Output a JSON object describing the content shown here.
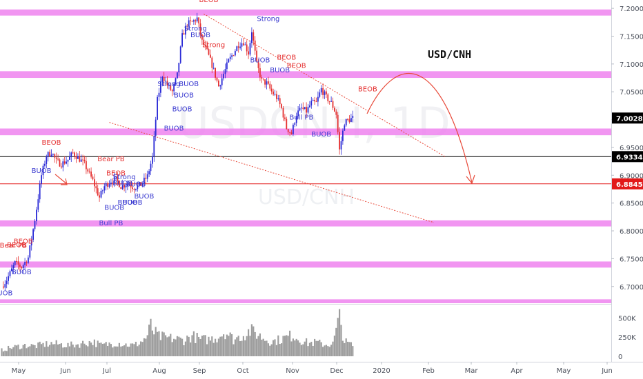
{
  "chart_data": {
    "type": "candlestick",
    "symbol": "USD/CNH",
    "title": "USD/CNH",
    "watermark_large": "USDCNH, 1D",
    "watermark_small": "USD/CNH",
    "price_axis": {
      "range": [
        6.67,
        7.215
      ],
      "ticks": [
        7.2,
        7.15,
        7.1,
        7.05,
        7.0,
        6.95,
        6.9,
        6.85,
        6.8,
        6.75,
        6.7
      ],
      "tick_labels": [
        "7.20000",
        "7.15000",
        "7.10000",
        "7.05000",
        "7.00000",
        "6.95000",
        "6.90000",
        "6.85000",
        "6.80000",
        "6.75000",
        "6.70000"
      ]
    },
    "time_axis": {
      "labels": [
        "May",
        "Jun",
        "Jul",
        "Aug",
        "Sep",
        "Oct",
        "Nov",
        "Dec",
        "2020",
        "Feb",
        "Mar",
        "Apr",
        "May",
        "Jun"
      ]
    },
    "volume_axis": {
      "range": [
        0,
        620000
      ],
      "ticks": [
        0,
        250000,
        500000
      ],
      "tick_labels": [
        "0",
        "250K",
        "500K"
      ]
    },
    "price_markers": [
      {
        "value": 7.0028,
        "label": "7.00280",
        "color": "#000000"
      },
      {
        "value": 6.93348,
        "label": "6.93348",
        "color": "#000000"
      },
      {
        "value": 6.88454,
        "label": "6.88454",
        "color": "#e21a1a"
      }
    ],
    "horizontal_lines": [
      {
        "value": 6.93348,
        "color": "#000000"
      },
      {
        "value": 6.88454,
        "color": "#e21a1a"
      }
    ],
    "zones": [
      {
        "low": 7.187,
        "high": 7.198
      },
      {
        "low": 7.075,
        "high": 7.087
      },
      {
        "low": 6.972,
        "high": 6.984
      },
      {
        "low": 6.808,
        "high": 6.819
      },
      {
        "low": 6.734,
        "high": 6.745
      },
      {
        "low": 6.67,
        "high": 6.677
      }
    ],
    "zone_color": "#ee82ee",
    "channel_lines": [
      {
        "from": {
          "day": 122,
          "price": 7.19
        },
        "to": {
          "day": 268,
          "price": 6.933
        }
      },
      {
        "from": {
          "day": 65,
          "price": 6.995
        },
        "to": {
          "day": 261,
          "price": 6.815
        }
      }
    ],
    "candle_colors": {
      "up": "#2a2ad6",
      "down": "#e53030"
    },
    "ohlc_anchors": [
      [
        0,
        6.7
      ],
      [
        3,
        6.712
      ],
      [
        8,
        6.742
      ],
      [
        12,
        6.735
      ],
      [
        16,
        6.752
      ],
      [
        20,
        6.82
      ],
      [
        24,
        6.9
      ],
      [
        27,
        6.935
      ],
      [
        30,
        6.942
      ],
      [
        33,
        6.925
      ],
      [
        36,
        6.92
      ],
      [
        40,
        6.928
      ],
      [
        43,
        6.94
      ],
      [
        46,
        6.932
      ],
      [
        50,
        6.92
      ],
      [
        55,
        6.89
      ],
      [
        59,
        6.86
      ],
      [
        62,
        6.88
      ],
      [
        66,
        6.89
      ],
      [
        69,
        6.893
      ],
      [
        72,
        6.88
      ],
      [
        76,
        6.885
      ],
      [
        80,
        6.878
      ],
      [
        84,
        6.883
      ],
      [
        88,
        6.898
      ],
      [
        91,
        6.932
      ],
      [
        94,
        7.035
      ],
      [
        97,
        7.08
      ],
      [
        100,
        7.062
      ],
      [
        103,
        7.05
      ],
      [
        106,
        7.08
      ],
      [
        109,
        7.15
      ],
      [
        112,
        7.172
      ],
      [
        115,
        7.175
      ],
      [
        118,
        7.182
      ],
      [
        121,
        7.14
      ],
      [
        124,
        7.122
      ],
      [
        127,
        7.098
      ],
      [
        131,
        7.06
      ],
      [
        134,
        7.082
      ],
      [
        137,
        7.105
      ],
      [
        140,
        7.12
      ],
      [
        143,
        7.135
      ],
      [
        146,
        7.14
      ],
      [
        149,
        7.12
      ],
      [
        151,
        7.16
      ],
      [
        154,
        7.1
      ],
      [
        157,
        7.07
      ],
      [
        160,
        7.065
      ],
      [
        163,
        7.05
      ],
      [
        166,
        7.04
      ],
      [
        169,
        7.02
      ],
      [
        172,
        6.985
      ],
      [
        175,
        6.975
      ],
      [
        178,
        7.01
      ],
      [
        181,
        7.02
      ],
      [
        184,
        7.015
      ],
      [
        187,
        7.03
      ],
      [
        190,
        7.03
      ],
      [
        193,
        7.055
      ],
      [
        196,
        7.04
      ],
      [
        199,
        7.03
      ],
      [
        202,
        7.01
      ],
      [
        204,
        6.945
      ],
      [
        207,
        6.995
      ],
      [
        210,
        7.0
      ],
      [
        212,
        7.003
      ]
    ],
    "volume_anchors": [
      [
        0,
        85000
      ],
      [
        5,
        115000
      ],
      [
        10,
        135000
      ],
      [
        15,
        150000
      ],
      [
        20,
        140000
      ],
      [
        25,
        160000
      ],
      [
        30,
        175000
      ],
      [
        35,
        165000
      ],
      [
        40,
        150000
      ],
      [
        45,
        160000
      ],
      [
        50,
        180000
      ],
      [
        55,
        200000
      ],
      [
        60,
        150000
      ],
      [
        65,
        170000
      ],
      [
        70,
        185000
      ],
      [
        75,
        160000
      ],
      [
        80,
        150000
      ],
      [
        85,
        210000
      ],
      [
        88,
        280000
      ],
      [
        90,
        420000
      ],
      [
        92,
        330000
      ],
      [
        95,
        270000
      ],
      [
        100,
        250000
      ],
      [
        105,
        240000
      ],
      [
        110,
        220000
      ],
      [
        115,
        280000
      ],
      [
        120,
        230000
      ],
      [
        125,
        230000
      ],
      [
        130,
        260000
      ],
      [
        135,
        340000
      ],
      [
        140,
        230000
      ],
      [
        145,
        280000
      ],
      [
        150,
        350000
      ],
      [
        153,
        320000
      ],
      [
        158,
        250000
      ],
      [
        163,
        200000
      ],
      [
        168,
        230000
      ],
      [
        172,
        260000
      ],
      [
        176,
        290000
      ],
      [
        180,
        230000
      ],
      [
        185,
        180000
      ],
      [
        190,
        190000
      ],
      [
        195,
        160000
      ],
      [
        200,
        170000
      ],
      [
        204,
        530000
      ],
      [
        207,
        200000
      ],
      [
        212,
        150000
      ]
    ],
    "annotations": [
      {
        "text": "BEOB",
        "day": 125,
        "price": 7.211,
        "color": "#e53030"
      },
      {
        "text": "Strong",
        "day": 161,
        "price": 7.177,
        "color": "#3a3ad0"
      },
      {
        "text": "Strong",
        "day": 117,
        "price": 7.16,
        "color": "#3a3ad0"
      },
      {
        "text": "BUOB",
        "day": 120,
        "price": 7.148,
        "color": "#3a3ad0"
      },
      {
        "text": "Strong",
        "day": 128,
        "price": 7.13,
        "color": "#e53030"
      },
      {
        "text": "BUOB",
        "day": 156,
        "price": 7.103,
        "color": "#3a3ad0"
      },
      {
        "text": "BEOB",
        "day": 172,
        "price": 7.108,
        "color": "#e53030"
      },
      {
        "text": "BEOB",
        "day": 178,
        "price": 7.093,
        "color": "#e53030"
      },
      {
        "text": "BUOB",
        "day": 168,
        "price": 7.085,
        "color": "#3a3ad0"
      },
      {
        "text": "BEOB",
        "day": 221,
        "price": 7.051,
        "color": "#e53030"
      },
      {
        "text": "Strong",
        "day": 101,
        "price": 7.06,
        "color": "#3a3ad0"
      },
      {
        "text": "BUOB",
        "day": 113,
        "price": 7.06,
        "color": "#3a3ad0"
      },
      {
        "text": "BUOB",
        "day": 110,
        "price": 7.04,
        "color": "#3a3ad0"
      },
      {
        "text": "BUOB",
        "day": 109,
        "price": 7.015,
        "color": "#3a3ad0"
      },
      {
        "text": "BUOB",
        "day": 104,
        "price": 6.98,
        "color": "#3a3ad0"
      },
      {
        "text": "Bull PB",
        "day": 181,
        "price": 7.0,
        "color": "#3a3ad0"
      },
      {
        "text": "BUOB",
        "day": 193,
        "price": 6.97,
        "color": "#3a3ad0"
      },
      {
        "text": "BEOB",
        "day": 30,
        "price": 6.955,
        "color": "#e53030"
      },
      {
        "text": "Bear PB",
        "day": 66,
        "price": 6.925,
        "color": "#e53030"
      },
      {
        "text": "BUOB",
        "day": 24,
        "price": 6.904,
        "color": "#3a3ad0"
      },
      {
        "text": "BEOB",
        "day": 69,
        "price": 6.9,
        "color": "#e53030"
      },
      {
        "text": "Strong",
        "day": 74,
        "price": 6.893,
        "color": "#3a3ad0"
      },
      {
        "text": "BUOB",
        "day": 73,
        "price": 6.882,
        "color": "#3a3ad0"
      },
      {
        "text": "BUOB",
        "day": 81,
        "price": 6.88,
        "color": "#3a3ad0"
      },
      {
        "text": "BUOB",
        "day": 86,
        "price": 6.858,
        "color": "#3a3ad0"
      },
      {
        "text": "BUOB",
        "day": 79,
        "price": 6.847,
        "color": "#3a3ad0"
      },
      {
        "text": "BUOB",
        "day": 76,
        "price": 6.847,
        "color": "#3a3ad0"
      },
      {
        "text": "BUOB",
        "day": 68,
        "price": 6.838,
        "color": "#3a3ad0"
      },
      {
        "text": "Bull PB",
        "day": 66,
        "price": 6.81,
        "color": "#3a3ad0"
      },
      {
        "text": "BEOB",
        "day": 13,
        "price": 6.777,
        "color": "#e53030"
      },
      {
        "text": "BEOB",
        "day": 9,
        "price": 6.771,
        "color": "#e53030"
      },
      {
        "text": "Bear PB",
        "day": 7,
        "price": 6.77,
        "color": "#e53030"
      },
      {
        "text": "BUOB",
        "day": 12,
        "price": 6.722,
        "color": "#3a3ad0"
      },
      {
        "text": "UOB",
        "day": 2,
        "price": 6.684,
        "color": "#3a3ad0"
      }
    ],
    "grid": false,
    "legend": "none"
  }
}
